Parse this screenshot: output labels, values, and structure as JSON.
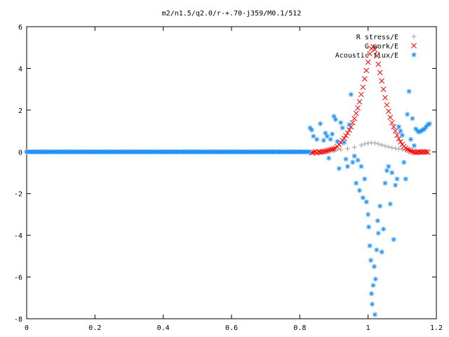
{
  "chart_data": {
    "type": "scatter",
    "title": "m2/n1.5/q2.0/r-+.70-j359/M0.1/512",
    "xlabel": "",
    "ylabel": "",
    "xlim": [
      0,
      1.2
    ],
    "ylim": [
      -8,
      6
    ],
    "xticks": [
      "0",
      "0.2",
      "0.4",
      "0.6",
      "0.8",
      "1",
      "1.2"
    ],
    "yticks": [
      "6",
      "4",
      "2",
      "0",
      "-2",
      "-4",
      "-6",
      "-8"
    ],
    "grid": false,
    "legend_position": "top-right",
    "series": [
      {
        "name": "R stress/E",
        "marker": "plus",
        "color": "#a0a0a0",
        "points": [
          [
            0.84,
            0.0
          ],
          [
            0.86,
            0.01
          ],
          [
            0.88,
            0.03
          ],
          [
            0.9,
            0.06
          ],
          [
            0.92,
            0.1
          ],
          [
            0.94,
            0.15
          ],
          [
            0.96,
            0.22
          ],
          [
            0.98,
            0.32
          ],
          [
            0.99,
            0.38
          ],
          [
            1.0,
            0.42
          ],
          [
            1.01,
            0.44
          ],
          [
            1.02,
            0.42
          ],
          [
            1.03,
            0.38
          ],
          [
            1.04,
            0.33
          ],
          [
            1.05,
            0.28
          ],
          [
            1.06,
            0.24
          ],
          [
            1.07,
            0.2
          ],
          [
            1.08,
            0.17
          ],
          [
            1.09,
            0.14
          ],
          [
            1.1,
            0.12
          ],
          [
            1.11,
            0.1
          ],
          [
            1.12,
            0.08
          ],
          [
            1.13,
            0.06
          ],
          [
            1.14,
            0.04
          ],
          [
            1.15,
            0.02
          ],
          [
            1.16,
            0.01
          ],
          [
            1.17,
            0.0
          ]
        ]
      },
      {
        "name": "G work/E",
        "marker": "cross",
        "color": "#ff0000",
        "points": [
          [
            0.835,
            -0.05
          ],
          [
            0.84,
            -0.02
          ],
          [
            0.845,
            0.0
          ],
          [
            0.85,
            -0.05
          ],
          [
            0.855,
            0.0
          ],
          [
            0.86,
            -0.02
          ],
          [
            0.865,
            0.0
          ],
          [
            0.87,
            0.01
          ],
          [
            0.875,
            0.03
          ],
          [
            0.88,
            0.05
          ],
          [
            0.885,
            0.08
          ],
          [
            0.89,
            0.1
          ],
          [
            0.895,
            0.12
          ],
          [
            0.9,
            0.14
          ],
          [
            0.905,
            0.18
          ],
          [
            0.91,
            0.25
          ],
          [
            0.915,
            0.35
          ],
          [
            0.92,
            0.45
          ],
          [
            0.925,
            0.55
          ],
          [
            0.93,
            0.65
          ],
          [
            0.935,
            0.78
          ],
          [
            0.94,
            0.9
          ],
          [
            0.945,
            1.05
          ],
          [
            0.95,
            1.2
          ],
          [
            0.955,
            1.4
          ],
          [
            0.96,
            1.6
          ],
          [
            0.965,
            1.85
          ],
          [
            0.97,
            2.1
          ],
          [
            0.975,
            2.4
          ],
          [
            0.98,
            2.75
          ],
          [
            0.985,
            3.1
          ],
          [
            0.99,
            3.5
          ],
          [
            0.995,
            3.9
          ],
          [
            1.0,
            4.3
          ],
          [
            1.005,
            4.7
          ],
          [
            1.01,
            4.95
          ],
          [
            1.015,
            5.05
          ],
          [
            1.02,
            4.9
          ],
          [
            1.025,
            4.6
          ],
          [
            1.03,
            4.2
          ],
          [
            1.035,
            3.8
          ],
          [
            1.04,
            3.4
          ],
          [
            1.045,
            3.0
          ],
          [
            1.05,
            2.6
          ],
          [
            1.055,
            2.25
          ],
          [
            1.06,
            1.95
          ],
          [
            1.065,
            1.65
          ],
          [
            1.07,
            1.4
          ],
          [
            1.075,
            1.2
          ],
          [
            1.08,
            1.0
          ],
          [
            1.085,
            0.8
          ],
          [
            1.09,
            0.62
          ],
          [
            1.095,
            0.48
          ],
          [
            1.1,
            0.36
          ],
          [
            1.105,
            0.26
          ],
          [
            1.11,
            0.18
          ],
          [
            1.115,
            0.12
          ],
          [
            1.12,
            0.08
          ],
          [
            1.125,
            0.04
          ],
          [
            1.13,
            0.01
          ],
          [
            1.135,
            -0.02
          ],
          [
            1.14,
            -0.03
          ],
          [
            1.145,
            -0.02
          ],
          [
            1.15,
            0.0
          ],
          [
            1.155,
            -0.02
          ],
          [
            1.16,
            0.0
          ],
          [
            1.165,
            -0.01
          ],
          [
            1.17,
            0.0
          ],
          [
            1.175,
            -0.02
          ]
        ]
      },
      {
        "name": "Acoustic flux/E",
        "marker": "star",
        "color": "#1e90ff",
        "points": [
          [
            0.0,
            0.0
          ],
          [
            0.02,
            0.0
          ],
          [
            0.04,
            0.0
          ],
          [
            0.06,
            0.0
          ],
          [
            0.08,
            0.0
          ],
          [
            0.1,
            0.0
          ],
          [
            0.12,
            0.0
          ],
          [
            0.14,
            0.0
          ],
          [
            0.16,
            0.0
          ],
          [
            0.18,
            0.0
          ],
          [
            0.2,
            0.0
          ],
          [
            0.22,
            0.0
          ],
          [
            0.24,
            0.0
          ],
          [
            0.26,
            0.0
          ],
          [
            0.28,
            0.0
          ],
          [
            0.3,
            0.0
          ],
          [
            0.32,
            0.0
          ],
          [
            0.34,
            0.0
          ],
          [
            0.36,
            0.0
          ],
          [
            0.38,
            0.0
          ],
          [
            0.4,
            0.0
          ],
          [
            0.42,
            0.0
          ],
          [
            0.44,
            0.0
          ],
          [
            0.46,
            0.0
          ],
          [
            0.48,
            0.0
          ],
          [
            0.5,
            0.0
          ],
          [
            0.52,
            0.0
          ],
          [
            0.54,
            0.0
          ],
          [
            0.56,
            0.0
          ],
          [
            0.58,
            0.0
          ],
          [
            0.6,
            0.0
          ],
          [
            0.62,
            0.0
          ],
          [
            0.64,
            0.0
          ],
          [
            0.66,
            0.0
          ],
          [
            0.68,
            0.0
          ],
          [
            0.7,
            0.0
          ],
          [
            0.72,
            0.0
          ],
          [
            0.74,
            0.0
          ],
          [
            0.76,
            0.0
          ],
          [
            0.78,
            0.0
          ],
          [
            0.8,
            0.0
          ],
          [
            0.82,
            0.0
          ],
          [
            0.83,
            1.15
          ],
          [
            0.835,
            1.05
          ],
          [
            0.84,
            0.75
          ],
          [
            0.85,
            0.6
          ],
          [
            0.86,
            1.35
          ],
          [
            0.87,
            0.55
          ],
          [
            0.875,
            0.9
          ],
          [
            0.88,
            0.75
          ],
          [
            0.885,
            -0.3
          ],
          [
            0.89,
            0.6
          ],
          [
            0.895,
            0.85
          ],
          [
            0.9,
            1.7
          ],
          [
            0.905,
            1.55
          ],
          [
            0.91,
            0.5
          ],
          [
            0.915,
            -0.8
          ],
          [
            0.92,
            1.4
          ],
          [
            0.925,
            1.15
          ],
          [
            0.93,
            0.45
          ],
          [
            0.935,
            -0.35
          ],
          [
            0.94,
            -0.7
          ],
          [
            0.945,
            1.3
          ],
          [
            0.95,
            2.75
          ],
          [
            0.955,
            -0.5
          ],
          [
            0.96,
            -0.2
          ],
          [
            0.965,
            -1.5
          ],
          [
            0.97,
            -0.4
          ],
          [
            0.975,
            -1.85
          ],
          [
            0.98,
            -0.7
          ],
          [
            0.985,
            -2.2
          ],
          [
            0.99,
            -1.3
          ],
          [
            0.995,
            -2.4
          ],
          [
            1.0,
            -3.0
          ],
          [
            1.002,
            -3.6
          ],
          [
            1.005,
            -4.5
          ],
          [
            1.008,
            -5.2
          ],
          [
            1.01,
            -6.8
          ],
          [
            1.012,
            -7.3
          ],
          [
            1.015,
            -6.4
          ],
          [
            1.018,
            -5.5
          ],
          [
            1.02,
            -7.8
          ],
          [
            1.022,
            -6.1
          ],
          [
            1.025,
            -4.7
          ],
          [
            1.028,
            -3.3
          ],
          [
            1.03,
            -3.9
          ],
          [
            1.035,
            -2.6
          ],
          [
            1.04,
            -4.8
          ],
          [
            1.045,
            -3.7
          ],
          [
            1.05,
            -1.5
          ],
          [
            1.055,
            -0.9
          ],
          [
            1.06,
            -0.7
          ],
          [
            1.065,
            -2.5
          ],
          [
            1.07,
            -1.0
          ],
          [
            1.075,
            -4.2
          ],
          [
            1.08,
            -1.6
          ],
          [
            1.085,
            -1.3
          ],
          [
            1.09,
            1.2
          ],
          [
            1.095,
            1.0
          ],
          [
            1.1,
            0.8
          ],
          [
            1.105,
            -0.5
          ],
          [
            1.11,
            -1.3
          ],
          [
            1.115,
            1.8
          ],
          [
            1.12,
            2.9
          ],
          [
            1.125,
            0.6
          ],
          [
            1.13,
            1.6
          ],
          [
            1.135,
            0.3
          ],
          [
            1.14,
            1.1
          ],
          [
            1.145,
            1.0
          ],
          [
            1.15,
            0.95
          ],
          [
            1.155,
            1.0
          ],
          [
            1.16,
            1.05
          ],
          [
            1.165,
            1.1
          ],
          [
            1.17,
            1.2
          ],
          [
            1.175,
            1.3
          ],
          [
            1.18,
            1.35
          ]
        ]
      }
    ]
  }
}
